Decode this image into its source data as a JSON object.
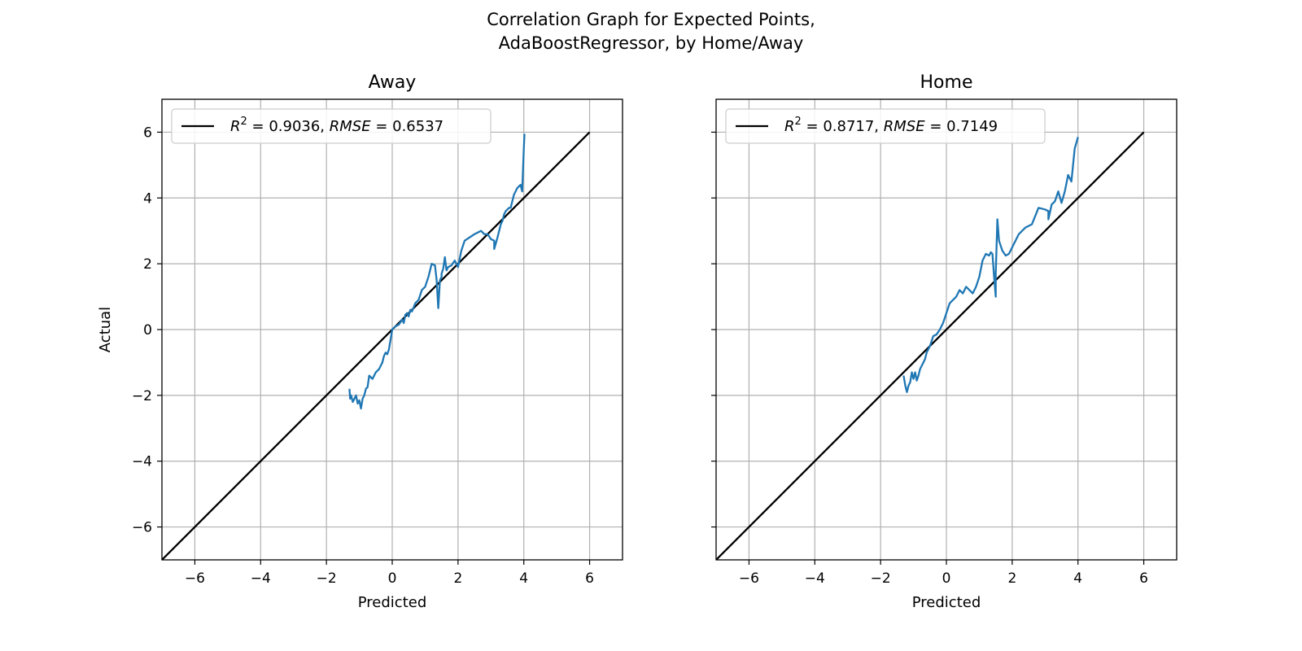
{
  "figure": {
    "title": "Correlation Graph for Expected Points,\nAdaBoostRegressor, by Home/Away"
  },
  "colors": {
    "series": "#1f77b4",
    "identity": "#000000",
    "grid": "#b0b0b0"
  },
  "chart_data": [
    {
      "type": "line",
      "title": "Away",
      "xlabel": "Predicted",
      "ylabel": "Actual",
      "xlim": [
        -7,
        7
      ],
      "ylim": [
        -7,
        7
      ],
      "xticks": [
        -6,
        -4,
        -2,
        0,
        2,
        4,
        6
      ],
      "yticks": [
        -6,
        -4,
        -2,
        0,
        2,
        4,
        6
      ],
      "grid": true,
      "legend_position": "top-left",
      "legend": "R² = 0.9036, RMSE = 0.6537",
      "legend_parts": {
        "r2_label": "R",
        "r2_exp": "2",
        "r2_value": " = 0.9036, ",
        "rmse_label": "RMSE",
        "rmse_value": " = 0.6537"
      },
      "series": [
        {
          "role": "identity",
          "x": [
            -7,
            6
          ],
          "y": [
            -7,
            6
          ]
        },
        {
          "role": "data",
          "x": [
            -1.3,
            -1.28,
            -1.25,
            -1.2,
            -1.15,
            -1.1,
            -1.05,
            -1.0,
            -0.95,
            -0.9,
            -0.85,
            -0.8,
            -0.75,
            -0.7,
            -0.6,
            -0.5,
            -0.4,
            -0.3,
            -0.25,
            -0.2,
            -0.15,
            -0.1,
            -0.05,
            0,
            0.05,
            0.1,
            0.2,
            0.3,
            0.35,
            0.4,
            0.45,
            0.5,
            0.55,
            0.6,
            0.7,
            0.8,
            0.9,
            1.0,
            1.1,
            1.2,
            1.3,
            1.35,
            1.4,
            1.45,
            1.5,
            1.5,
            1.55,
            1.6,
            1.65,
            1.7,
            1.8,
            1.9,
            2.0,
            2.1,
            2.2,
            2.5,
            2.7,
            2.8,
            2.9,
            3.0,
            3.1,
            3.1,
            3.2,
            3.3,
            3.35,
            3.4,
            3.45,
            3.5,
            3.55,
            3.6,
            3.7,
            3.8,
            3.9,
            3.95,
            4.0,
            4.02
          ],
          "y": [
            -1.8,
            -2.1,
            -2.0,
            -2.2,
            -2.1,
            -2.0,
            -2.25,
            -2.15,
            -2.4,
            -2.1,
            -2.0,
            -1.8,
            -1.75,
            -1.4,
            -1.5,
            -1.3,
            -1.2,
            -1.0,
            -0.8,
            -0.7,
            -0.75,
            -0.6,
            -0.3,
            0.0,
            0.05,
            0.1,
            0.15,
            0.3,
            0.2,
            0.45,
            0.5,
            0.4,
            0.6,
            0.55,
            0.8,
            0.9,
            1.2,
            1.3,
            1.6,
            2.0,
            1.95,
            1.5,
            0.65,
            1.5,
            1.6,
            1.7,
            1.85,
            2.2,
            1.8,
            1.9,
            1.95,
            2.1,
            1.9,
            2.4,
            2.7,
            2.9,
            3.0,
            2.9,
            2.9,
            2.75,
            2.7,
            2.45,
            2.8,
            3.2,
            3.3,
            3.5,
            3.6,
            3.65,
            3.7,
            3.7,
            4.1,
            4.3,
            4.4,
            4.2,
            5.5,
            5.95
          ]
        }
      ]
    },
    {
      "type": "line",
      "title": "Home",
      "xlabel": "Predicted",
      "ylabel": "",
      "xlim": [
        -7,
        7
      ],
      "ylim": [
        -7,
        7
      ],
      "xticks": [
        -6,
        -4,
        -2,
        0,
        2,
        4,
        6
      ],
      "yticks": [
        -6,
        -4,
        -2,
        0,
        2,
        4,
        6
      ],
      "grid": true,
      "legend_position": "top-left",
      "legend": "R² = 0.8717, RMSE = 0.7149",
      "legend_parts": {
        "r2_label": "R",
        "r2_exp": "2",
        "r2_value": " = 0.8717, ",
        "rmse_label": "RMSE",
        "rmse_value": " = 0.7149"
      },
      "series": [
        {
          "role": "identity",
          "x": [
            -7,
            6
          ],
          "y": [
            -7,
            6
          ]
        },
        {
          "role": "data",
          "x": [
            -1.3,
            -1.25,
            -1.2,
            -1.15,
            -1.1,
            -1.05,
            -1.0,
            -0.95,
            -0.9,
            -0.85,
            -0.8,
            -0.75,
            -0.7,
            -0.65,
            -0.6,
            -0.5,
            -0.4,
            -0.3,
            -0.2,
            -0.1,
            0,
            0.1,
            0.2,
            0.3,
            0.4,
            0.5,
            0.6,
            0.7,
            0.8,
            0.9,
            1.0,
            1.1,
            1.2,
            1.3,
            1.35,
            1.4,
            1.45,
            1.5,
            1.5,
            1.55,
            1.6,
            1.7,
            1.8,
            1.9,
            2.0,
            2.1,
            2.2,
            2.4,
            2.6,
            2.8,
            3.0,
            3.1,
            3.1,
            3.2,
            3.3,
            3.4,
            3.5,
            3.6,
            3.7,
            3.8,
            3.9,
            4.0
          ],
          "y": [
            -1.4,
            -1.7,
            -1.9,
            -1.7,
            -1.6,
            -1.3,
            -1.5,
            -1.3,
            -1.55,
            -1.4,
            -1.2,
            -1.1,
            -1.0,
            -0.9,
            -0.7,
            -0.5,
            -0.2,
            -0.15,
            0.0,
            0.2,
            0.5,
            0.8,
            0.9,
            1.0,
            1.2,
            1.1,
            1.3,
            1.2,
            1.1,
            1.3,
            1.6,
            2.1,
            2.3,
            2.25,
            2.35,
            2.3,
            1.6,
            1.0,
            1.7,
            3.35,
            2.7,
            2.4,
            2.25,
            2.3,
            2.5,
            2.7,
            2.9,
            3.1,
            3.2,
            3.7,
            3.65,
            3.6,
            3.35,
            3.8,
            3.9,
            4.2,
            3.85,
            4.2,
            4.7,
            4.5,
            5.5,
            5.85
          ]
        }
      ]
    }
  ]
}
